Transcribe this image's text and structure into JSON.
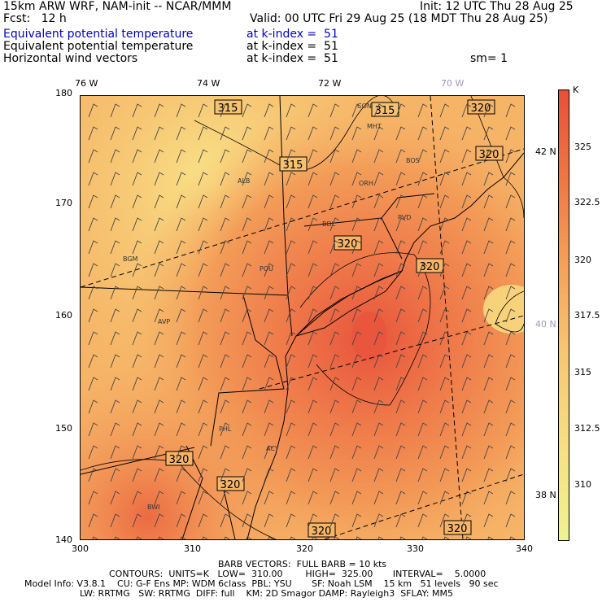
{
  "header": {
    "model": "15km ARW WRF, NAM-init -- NCAR/MMM",
    "init": "Init: 12 UTC Thu 28 Aug 25",
    "fcst": "Fcst:   12 h",
    "valid": "Valid: 00 UTC Fri 29 Aug 25 (18 MDT Thu 28 Aug 25)",
    "rows": [
      {
        "field": "Equivalent potential temperature",
        "level": "at k-index =  51"
      },
      {
        "field": "Equivalent potential temperature",
        "level": "at k-index =  51"
      },
      {
        "field": "Horizontal wind vectors",
        "level": "at k-index =  51",
        "extra": "sm= 1"
      }
    ]
  },
  "map": {
    "lon_labels": [
      "76 W",
      "74 W",
      "72 W",
      "70 W"
    ],
    "lat_labels": [
      "42 N",
      "40 N",
      "38 N"
    ],
    "x_ticks": [
      "300",
      "310",
      "320",
      "330",
      "340"
    ],
    "y_ticks": [
      "180",
      "170",
      "160",
      "150",
      "140"
    ],
    "contour_labels": [
      "315",
      "320"
    ],
    "stations": [
      "CON",
      "MHT",
      "BOS",
      "ALB",
      "ORH",
      "BDL",
      "PVD",
      "BGM",
      "POU",
      "AVP",
      "ACY",
      "PHL",
      "BWI"
    ],
    "colors": {
      "high": "#e8503a",
      "mid": "#f49f59",
      "low": "#eef391"
    }
  },
  "colorbar": {
    "unit": "K",
    "labels": [
      "325",
      "322.5",
      "320",
      "317.5",
      "315",
      "312.5",
      "310"
    ]
  },
  "footer": {
    "barb": "BARB VECTORS:  FULL BARB = 10 kts",
    "contours": "CONTOURS:  UNITS=K   LOW=  310.00        HIGH=  325.00       INTERVAL=    5.0000",
    "model_info": "Model Info: V3.8.1    CU: G-F Ens MP: WDM 6class  PBL: YSU       SF: Noah LSM    15 km   51 levels   90 sec",
    "physics": "LW: RRTMG   SW: RRTMG  DIFF: full    KM: 2D Smagor DAMP: Rayleigh3  SFLAY: MM5"
  }
}
